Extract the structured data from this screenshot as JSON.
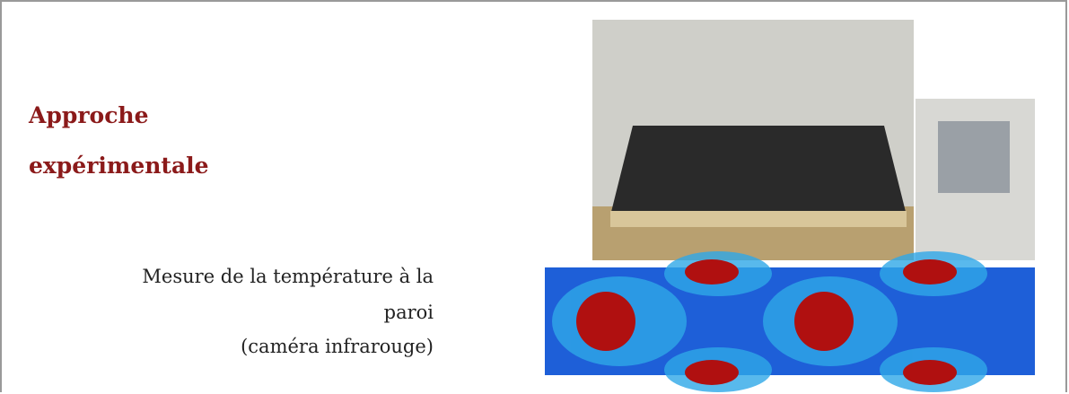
{
  "heading": {
    "line1": "Approche",
    "line2": "expérimentale"
  },
  "caption": {
    "line1": "Mesure de la température à la",
    "line2": "paroi",
    "line3": "(caméra infrarouge)"
  }
}
